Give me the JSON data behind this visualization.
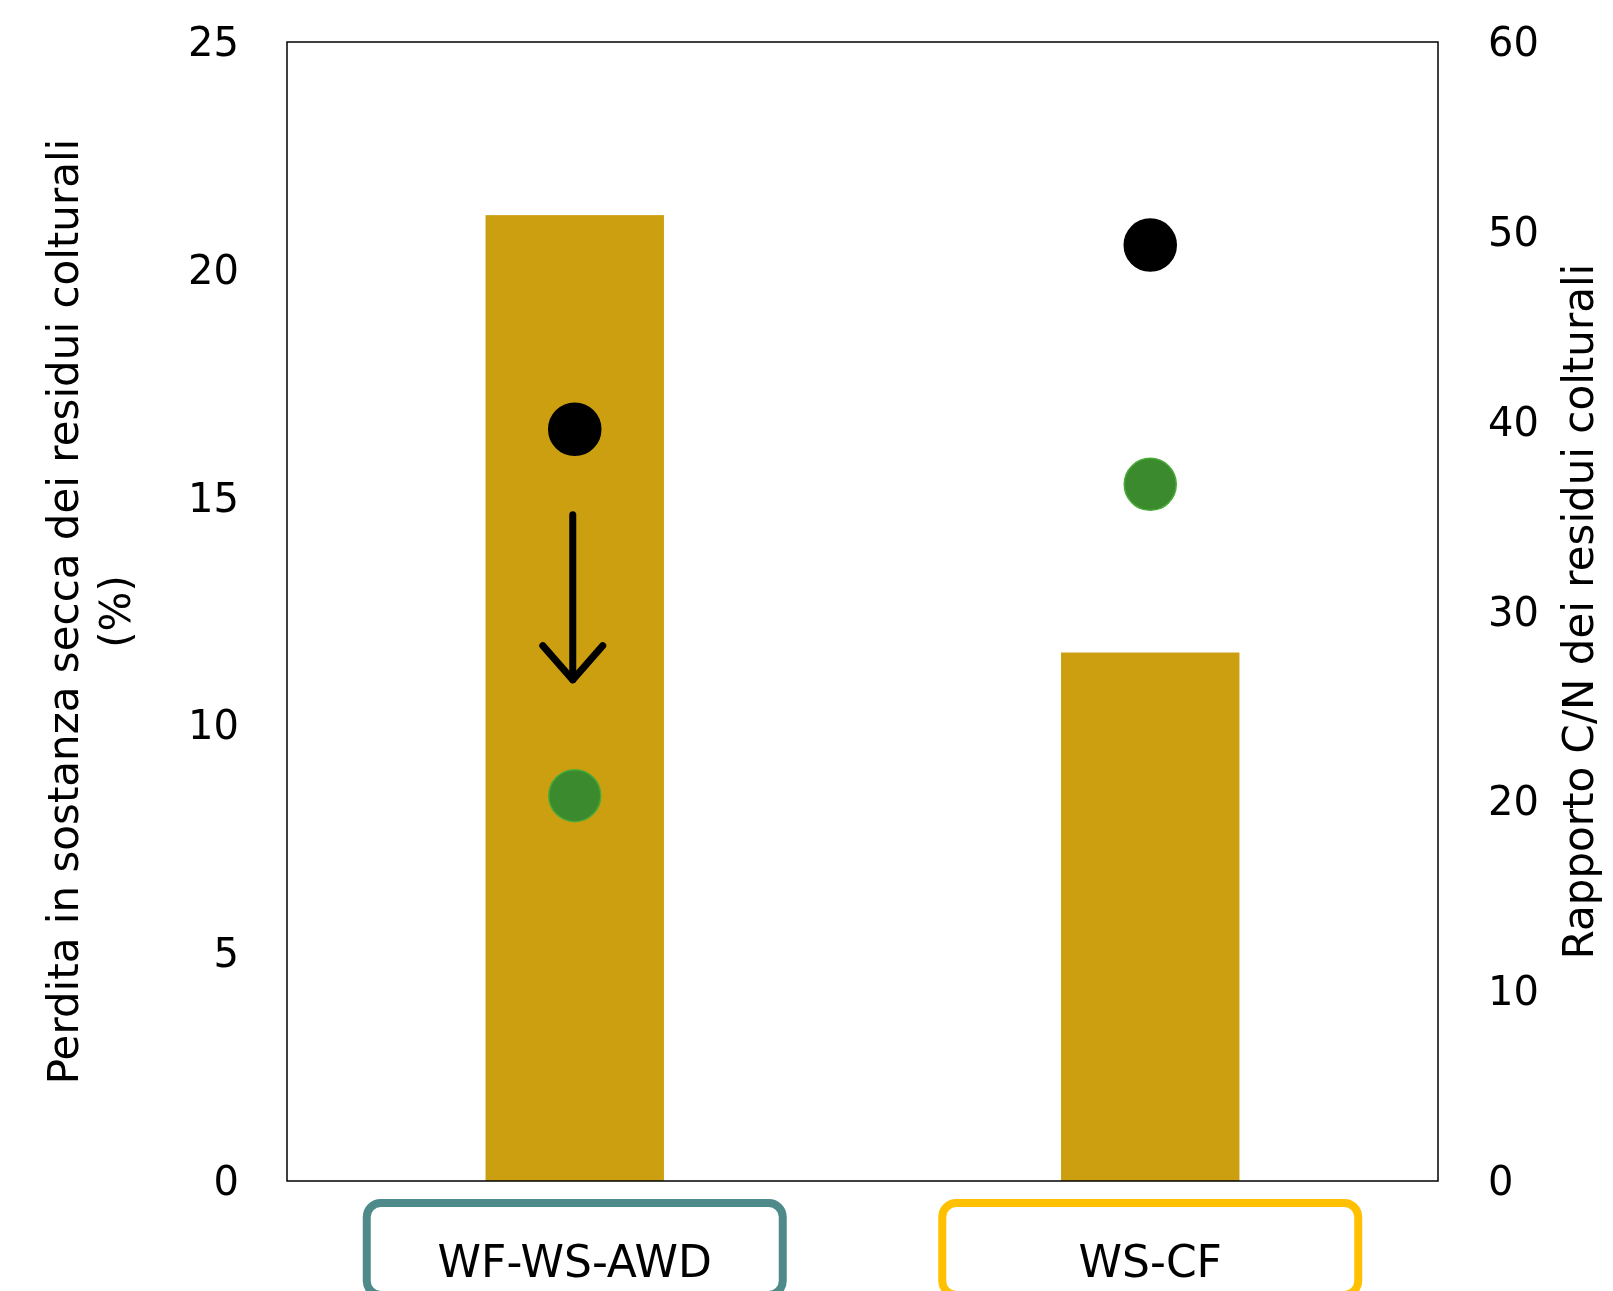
{
  "chart_data": {
    "type": "bar",
    "categories": [
      "WF-WS-AWD",
      "WS-CF"
    ],
    "ylabel": "Perdita in sostanza secca dei residui colturali (%)",
    "y2label": "Rapporto C/N dei residui colturali",
    "ylim": [
      0,
      25
    ],
    "yticks": [
      0,
      5,
      10,
      15,
      20,
      25
    ],
    "y2lim": [
      0,
      60
    ],
    "y2ticks": [
      0,
      10,
      20,
      30,
      40,
      50,
      60
    ],
    "grid": false,
    "marker": "circle",
    "series": [
      {
        "color": "#cc9f10",
        "values": [
          21.2,
          11.6
        ]
      },
      {
        "type": "scatter",
        "axis": "y2",
        "color": "#000000",
        "values": [
          39.6,
          49.3
        ]
      },
      {
        "type": "scatter",
        "axis": "y2",
        "color": "#3c8a2e",
        "values": [
          20.3,
          36.7
        ]
      }
    ]
  }
}
